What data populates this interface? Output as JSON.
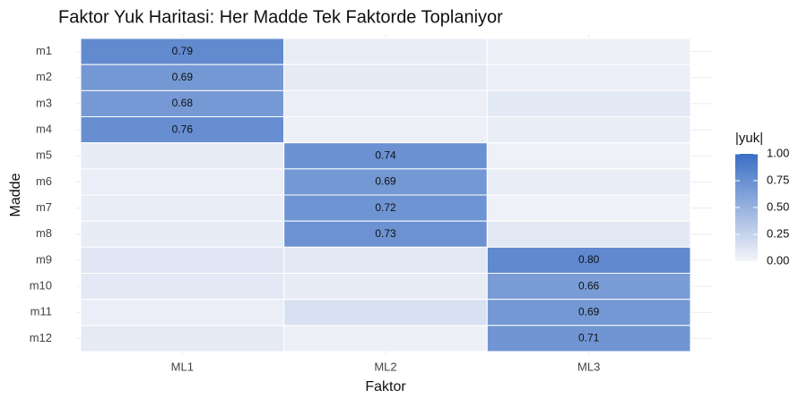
{
  "chart_data": {
    "type": "heatmap",
    "title": "Faktor Yuk Haritasi: Her Madde Tek Faktorde Toplaniyor",
    "x_label": "Faktor",
    "y_label": "Madde",
    "x": [
      "ML1",
      "ML2",
      "ML3"
    ],
    "y": [
      "m1",
      "m2",
      "m3",
      "m4",
      "m5",
      "m6",
      "m7",
      "m8",
      "m9",
      "m10",
      "m11",
      "m12"
    ],
    "values": [
      [
        0.79,
        0.06,
        0.04
      ],
      [
        0.69,
        0.08,
        0.05
      ],
      [
        0.68,
        0.05,
        0.1
      ],
      [
        0.76,
        0.04,
        0.06
      ],
      [
        0.07,
        0.74,
        0.03
      ],
      [
        0.05,
        0.69,
        0.06
      ],
      [
        0.06,
        0.72,
        0.03
      ],
      [
        0.07,
        0.73,
        0.09
      ],
      [
        0.11,
        0.09,
        0.8
      ],
      [
        0.09,
        0.07,
        0.66
      ],
      [
        0.05,
        0.15,
        0.69
      ],
      [
        0.08,
        0.04,
        0.71
      ]
    ],
    "value_labels": [
      [
        "0.79",
        null,
        null
      ],
      [
        "0.69",
        null,
        null
      ],
      [
        "0.68",
        null,
        null
      ],
      [
        "0.76",
        null,
        null
      ],
      [
        null,
        "0.74",
        null
      ],
      [
        null,
        "0.69",
        null
      ],
      [
        null,
        "0.72",
        null
      ],
      [
        null,
        "0.73",
        null
      ],
      [
        null,
        null,
        "0.80"
      ],
      [
        null,
        null,
        "0.66"
      ],
      [
        null,
        null,
        "0.69"
      ],
      [
        null,
        null,
        "0.71"
      ]
    ],
    "legend_title": "|yuk|",
    "clim": [
      0,
      1
    ],
    "cticks": [
      {
        "value": 0,
        "label": "0.00"
      },
      {
        "value": 0.25,
        "label": "0.25"
      },
      {
        "value": 0.5,
        "label": "0.50"
      },
      {
        "value": 0.75,
        "label": "0.75"
      },
      {
        "value": 1,
        "label": "1.00"
      }
    ],
    "low_color": "#f4f5f9",
    "high_color": "#3b6ec4"
  }
}
